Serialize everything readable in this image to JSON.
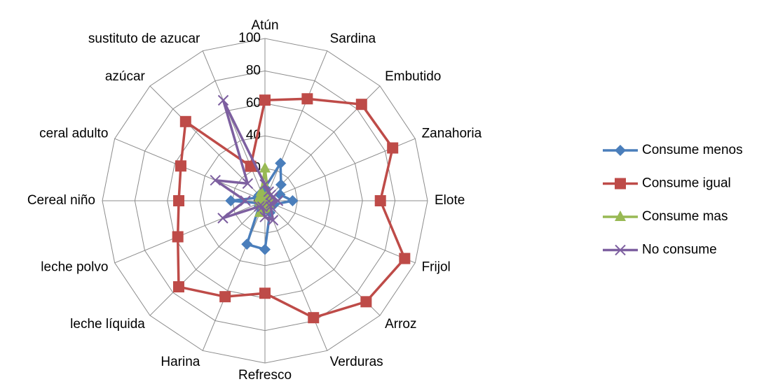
{
  "chart_data": {
    "type": "radar",
    "categories": [
      "Atún",
      "Sardina",
      "Embutido",
      "Zanahoria",
      "Elote",
      "Frijol",
      "Arroz",
      "Verduras",
      "Refresco",
      "Harina",
      "leche líquida",
      "leche polvo",
      "Cereal niño",
      "ceral adulto",
      "azúcar",
      "sustituto de azucar"
    ],
    "series": [
      {
        "name": "Consume menos",
        "color": "#4a7ebb",
        "marker": "diamond",
        "values": [
          8,
          25,
          14,
          10,
          17,
          6,
          4,
          8,
          30,
          29,
          5,
          4,
          21,
          5,
          5,
          5
        ]
      },
      {
        "name": "Consume igual",
        "color": "#be4b48",
        "marker": "square",
        "values": [
          62,
          68,
          84,
          85,
          71,
          93,
          88,
          78,
          57,
          64,
          75,
          58,
          53,
          56,
          69,
          23
        ]
      },
      {
        "name": "Consume mas",
        "color": "#98b954",
        "marker": "triangle",
        "values": [
          20,
          5,
          4,
          3,
          3,
          3,
          3,
          4,
          5,
          8,
          3,
          3,
          3,
          4,
          4,
          6
        ]
      },
      {
        "name": "No consume",
        "color": "#7d5fa0",
        "marker": "x",
        "values": [
          10,
          6,
          5,
          5,
          8,
          4,
          5,
          13,
          10,
          4,
          5,
          28,
          12,
          33,
          15,
          67
        ]
      }
    ],
    "ylim": [
      0,
      100
    ],
    "yticks": [
      0,
      20,
      40,
      60,
      80,
      100
    ],
    "grid": true,
    "legend": "right"
  }
}
